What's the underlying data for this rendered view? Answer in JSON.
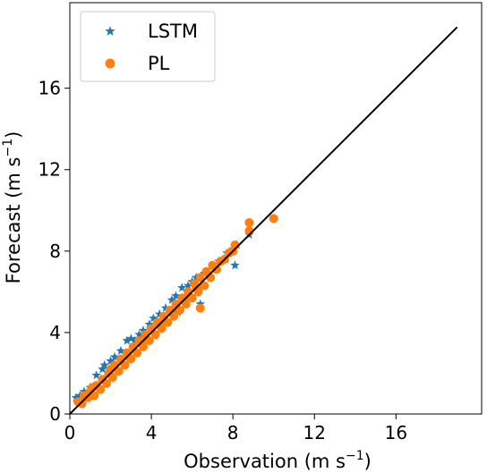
{
  "chart_data": {
    "type": "scatter",
    "xlabel": {
      "text": "Observation (m s",
      "sup": "−1",
      "close": ")"
    },
    "ylabel": {
      "text": "Forecast (m s",
      "sup": "−1",
      "close": ")"
    },
    "xlim": [
      0,
      20.2
    ],
    "ylim": [
      0,
      20.2
    ],
    "xticks": [
      0,
      4,
      8,
      12,
      16
    ],
    "yticks": [
      0,
      4,
      8,
      12,
      16
    ],
    "tick_labels_x": [
      "0",
      "4",
      "8",
      "12",
      "16"
    ],
    "tick_labels_y": [
      "0",
      "4",
      "8",
      "12",
      "16"
    ],
    "legend": {
      "position": "upper-left"
    },
    "reference_line": {
      "x": [
        0,
        19
      ],
      "y": [
        0,
        19
      ],
      "color": "#000000"
    },
    "series": [
      {
        "name": "LSTM",
        "marker": "star",
        "color": "#1f77b4",
        "points": [
          [
            0.3,
            0.8
          ],
          [
            0.5,
            0.9
          ],
          [
            0.7,
            1.1
          ],
          [
            1.0,
            1.3
          ],
          [
            1.3,
            1.9
          ],
          [
            1.6,
            2.2
          ],
          [
            1.7,
            2.4
          ],
          [
            2.0,
            2.6
          ],
          [
            2.2,
            2.8
          ],
          [
            2.5,
            3.1
          ],
          [
            2.8,
            3.6
          ],
          [
            3.0,
            3.7
          ],
          [
            3.2,
            3.6
          ],
          [
            3.4,
            3.9
          ],
          [
            3.6,
            4.1
          ],
          [
            3.9,
            4.4
          ],
          [
            4.1,
            4.7
          ],
          [
            4.4,
            4.9
          ],
          [
            4.7,
            5.2
          ],
          [
            5.0,
            5.6
          ],
          [
            5.2,
            5.8
          ],
          [
            5.5,
            6.2
          ],
          [
            5.8,
            6.3
          ],
          [
            6.0,
            6.5
          ],
          [
            6.2,
            6.7
          ],
          [
            6.4,
            5.4
          ],
          [
            6.6,
            6.9
          ],
          [
            7.0,
            7.3
          ],
          [
            7.3,
            7.5
          ],
          [
            7.7,
            7.9
          ],
          [
            8.0,
            8.1
          ],
          [
            8.1,
            7.3
          ],
          [
            8.2,
            8.3
          ],
          [
            8.8,
            8.8
          ],
          [
            10.0,
            9.6
          ],
          [
            4.5,
            4.3
          ],
          [
            5.3,
            5.0
          ],
          [
            2.7,
            2.4
          ]
        ]
      },
      {
        "name": "PL",
        "marker": "circle",
        "color": "#ff7f0e",
        "points": [
          [
            0.4,
            0.6
          ],
          [
            0.6,
            0.5
          ],
          [
            0.7,
            0.9
          ],
          [
            0.9,
            0.8
          ],
          [
            1.0,
            1.1
          ],
          [
            1.2,
            0.9
          ],
          [
            1.3,
            1.4
          ],
          [
            1.5,
            1.2
          ],
          [
            1.6,
            1.7
          ],
          [
            1.8,
            1.5
          ],
          [
            1.9,
            2.0
          ],
          [
            2.1,
            1.8
          ],
          [
            2.2,
            2.4
          ],
          [
            2.4,
            2.1
          ],
          [
            2.5,
            2.7
          ],
          [
            2.7,
            2.4
          ],
          [
            2.8,
            3.0
          ],
          [
            3.0,
            2.7
          ],
          [
            3.1,
            3.3
          ],
          [
            3.3,
            3.0
          ],
          [
            3.4,
            3.6
          ],
          [
            3.6,
            3.3
          ],
          [
            3.7,
            3.9
          ],
          [
            3.9,
            3.6
          ],
          [
            4.0,
            4.2
          ],
          [
            4.2,
            3.9
          ],
          [
            4.3,
            4.5
          ],
          [
            4.5,
            4.2
          ],
          [
            4.6,
            4.8
          ],
          [
            4.8,
            4.5
          ],
          [
            4.9,
            5.1
          ],
          [
            5.1,
            4.8
          ],
          [
            5.2,
            5.4
          ],
          [
            5.4,
            5.1
          ],
          [
            5.5,
            5.7
          ],
          [
            5.7,
            5.4
          ],
          [
            5.8,
            6.0
          ],
          [
            6.0,
            5.7
          ],
          [
            6.1,
            6.4
          ],
          [
            6.3,
            6.0
          ],
          [
            6.4,
            6.7
          ],
          [
            6.4,
            5.2
          ],
          [
            6.6,
            6.3
          ],
          [
            6.7,
            7.0
          ],
          [
            6.9,
            6.7
          ],
          [
            7.0,
            7.3
          ],
          [
            7.2,
            7.1
          ],
          [
            7.4,
            7.5
          ],
          [
            7.6,
            7.6
          ],
          [
            7.8,
            7.9
          ],
          [
            8.0,
            8.0
          ],
          [
            8.1,
            8.3
          ],
          [
            8.8,
            9.0
          ],
          [
            8.8,
            9.4
          ],
          [
            10.0,
            9.6
          ],
          [
            2.0,
            2.2
          ],
          [
            3.5,
            3.5
          ],
          [
            4.4,
            4.4
          ],
          [
            5.6,
            5.6
          ],
          [
            6.2,
            6.2
          ],
          [
            1.1,
            1.3
          ],
          [
            2.9,
            2.8
          ]
        ]
      }
    ]
  }
}
